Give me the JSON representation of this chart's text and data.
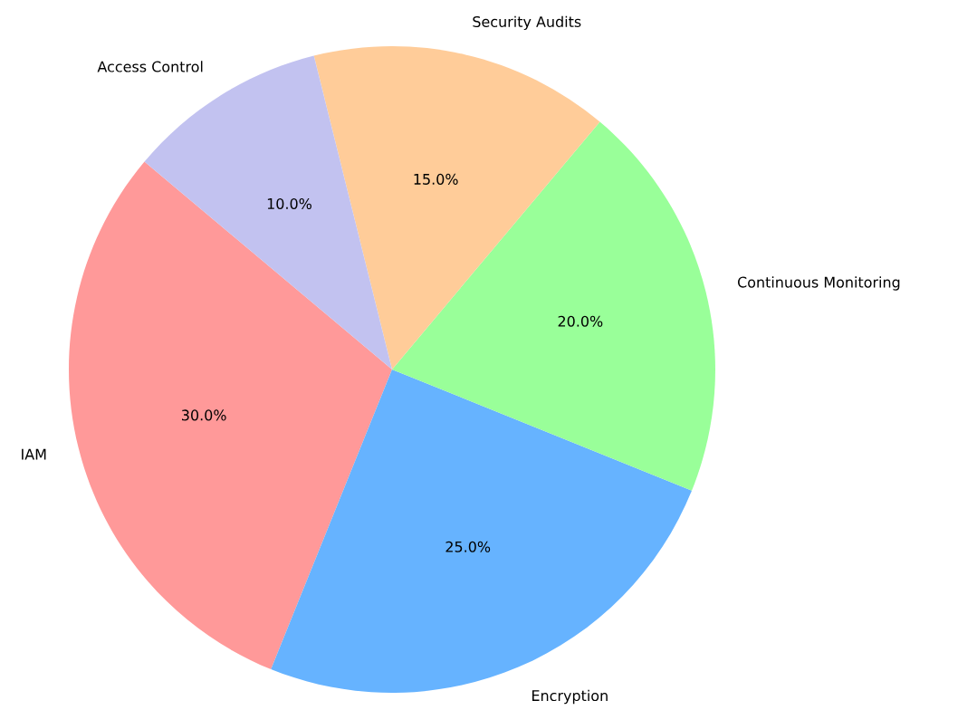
{
  "chart_data": {
    "type": "pie",
    "categories": [
      "IAM",
      "Encryption",
      "Continuous Monitoring",
      "Security Audits",
      "Access Control"
    ],
    "values": [
      30,
      25,
      20,
      15,
      10
    ],
    "colors": [
      "#ff9999",
      "#66b3ff",
      "#99ff99",
      "#ffcc99",
      "#c2c2f0"
    ],
    "value_labels": [
      "30.0%",
      "25.0%",
      "20.0%",
      "15.0%",
      "10.0%"
    ]
  }
}
